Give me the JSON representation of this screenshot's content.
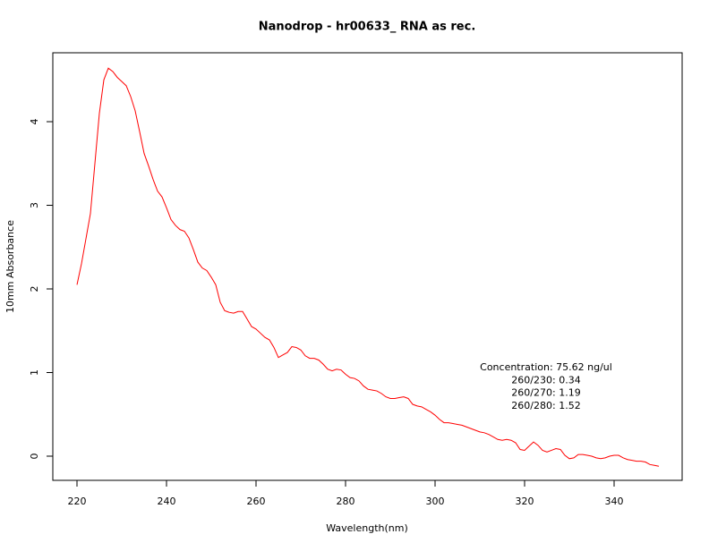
{
  "chart_data": {
    "type": "line",
    "title": "Nanodrop - hr00633_ RNA as rec.",
    "x_label": "Wavelength(nm)",
    "y_label": "10mm Absorbance",
    "xlim": [
      214.6,
      355.2
    ],
    "ylim": [
      -0.289,
      4.824
    ],
    "xticks": [
      220,
      240,
      260,
      280,
      300,
      320,
      340
    ],
    "yticks": [
      0,
      1,
      2,
      3,
      4
    ],
    "annotations": [
      "Concentration: 75.62 ng/ul",
      "260/230: 0.34",
      "260/270: 1.19",
      "260/280: 1.52"
    ],
    "x": [
      220,
      221,
      222,
      223,
      224,
      225,
      226,
      227,
      228,
      229,
      230,
      231,
      232,
      233,
      234,
      235,
      236,
      237,
      238,
      239,
      240,
      241,
      242,
      243,
      244,
      245,
      246,
      247,
      248,
      249,
      250,
      251,
      252,
      253,
      254,
      255,
      256,
      257,
      258,
      259,
      260,
      261,
      262,
      263,
      264,
      265,
      266,
      267,
      268,
      269,
      270,
      271,
      272,
      273,
      274,
      275,
      276,
      277,
      278,
      279,
      280,
      281,
      282,
      283,
      284,
      285,
      286,
      287,
      288,
      289,
      290,
      291,
      292,
      293,
      294,
      295,
      296,
      297,
      298,
      299,
      300,
      301,
      302,
      303,
      304,
      305,
      306,
      307,
      308,
      309,
      310,
      311,
      312,
      313,
      314,
      315,
      316,
      317,
      318,
      319,
      320,
      321,
      322,
      323,
      324,
      325,
      326,
      327,
      328,
      329,
      330,
      331,
      332,
      333,
      334,
      335,
      336,
      337,
      338,
      339,
      340,
      341,
      342,
      343,
      344,
      345,
      346,
      347,
      348,
      349,
      350
    ],
    "series": [
      {
        "name": "Absorbance",
        "color": "#ff0000",
        "values": [
          2.05,
          2.3,
          2.6,
          2.9,
          3.5,
          4.1,
          4.5,
          4.64,
          4.6,
          4.53,
          4.48,
          4.43,
          4.3,
          4.13,
          3.88,
          3.62,
          3.47,
          3.31,
          3.17,
          3.1,
          2.97,
          2.83,
          2.76,
          2.71,
          2.69,
          2.61,
          2.47,
          2.32,
          2.25,
          2.22,
          2.14,
          2.05,
          1.84,
          1.74,
          1.72,
          1.71,
          1.73,
          1.73,
          1.64,
          1.55,
          1.52,
          1.47,
          1.42,
          1.39,
          1.3,
          1.18,
          1.21,
          1.24,
          1.31,
          1.3,
          1.27,
          1.2,
          1.17,
          1.17,
          1.15,
          1.1,
          1.04,
          1.02,
          1.04,
          1.03,
          0.98,
          0.94,
          0.93,
          0.9,
          0.84,
          0.8,
          0.79,
          0.78,
          0.75,
          0.71,
          0.69,
          0.69,
          0.7,
          0.71,
          0.69,
          0.62,
          0.6,
          0.59,
          0.56,
          0.53,
          0.49,
          0.44,
          0.4,
          0.4,
          0.39,
          0.38,
          0.37,
          0.35,
          0.33,
          0.31,
          0.29,
          0.28,
          0.26,
          0.23,
          0.2,
          0.19,
          0.2,
          0.19,
          0.16,
          0.08,
          0.07,
          0.12,
          0.17,
          0.13,
          0.07,
          0.05,
          0.07,
          0.09,
          0.08,
          0.01,
          -0.03,
          -0.02,
          0.02,
          0.02,
          0.01,
          0,
          -0.02,
          -0.03,
          -0.02,
          0,
          0.01,
          0.01,
          -0.02,
          -0.04,
          -0.05,
          -0.06,
          -0.06,
          -0.07,
          -0.1,
          -0.11,
          -0.12
        ]
      }
    ]
  }
}
